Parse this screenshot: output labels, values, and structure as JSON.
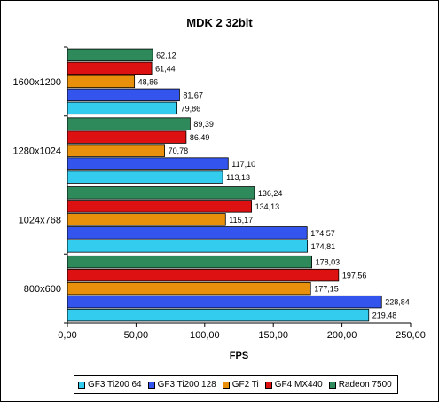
{
  "chart_data": {
    "type": "bar",
    "orientation": "horizontal",
    "title": "MDK 2 32bit",
    "xlabel": "FPS",
    "ylabel": "",
    "xlim": [
      0,
      250
    ],
    "x_ticks": [
      "0,00",
      "50,00",
      "100,00",
      "150,00",
      "200,00",
      "250,00"
    ],
    "grid": false,
    "legend_position": "bottom",
    "categories": [
      "1600x1200",
      "1280x1024",
      "1024x768",
      "800x600"
    ],
    "series": [
      {
        "name": "GF3 Ti200 64",
        "color": "#33ccee",
        "values": [
          79.86,
          113.13,
          174.81,
          219.48
        ],
        "labels": [
          "79,86",
          "113,13",
          "174,81",
          "219,48"
        ]
      },
      {
        "name": "GF3 Ti200 128",
        "color": "#3355ee",
        "values": [
          81.67,
          117.1,
          174.57,
          228.84
        ],
        "labels": [
          "81,67",
          "117,10",
          "174,57",
          "228,84"
        ]
      },
      {
        "name": "GF2 Ti",
        "color": "#e8900c",
        "values": [
          48.86,
          70.78,
          115.17,
          177.15
        ],
        "labels": [
          "48,86",
          "70,78",
          "115,17",
          "177,15"
        ]
      },
      {
        "name": "GF4 MX440",
        "color": "#dd1111",
        "values": [
          61.44,
          86.49,
          134.13,
          197.56
        ],
        "labels": [
          "61,44",
          "86,49",
          "134,13",
          "197,56"
        ]
      },
      {
        "name": "Radeon 7500",
        "color": "#2e8a5a",
        "values": [
          62.12,
          89.39,
          136.24,
          178.03
        ],
        "labels": [
          "62,12",
          "89,39",
          "136,24",
          "178,03"
        ]
      }
    ]
  }
}
